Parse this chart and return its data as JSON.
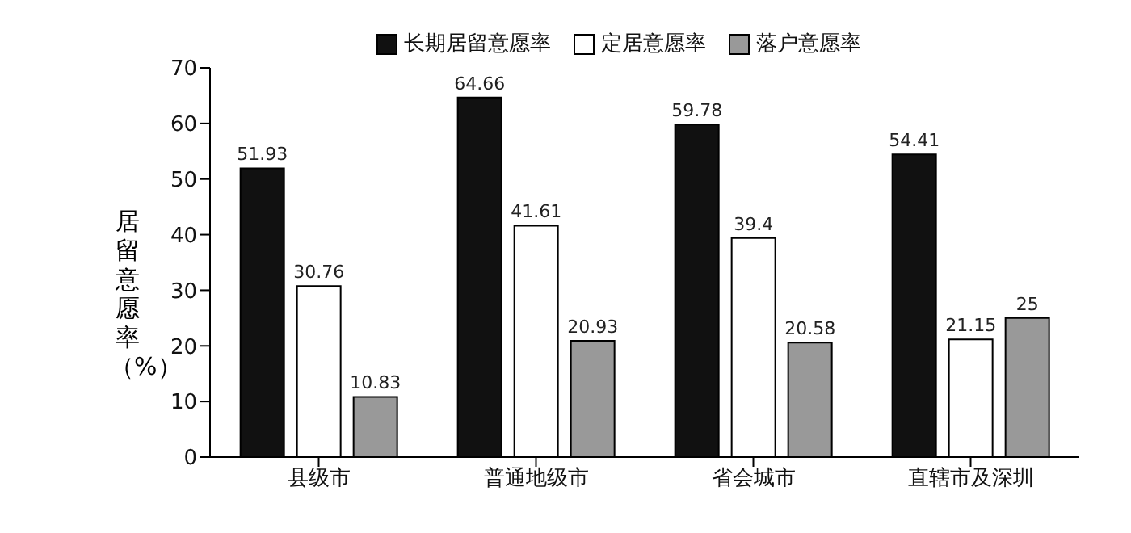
{
  "chart_data": {
    "type": "bar",
    "ylabel": "居留意愿率（%）",
    "categories": [
      "县级市",
      "普通地级市",
      "省会城市",
      "直辖市及深圳"
    ],
    "series": [
      {
        "name": "长期居留意愿率",
        "color": "#111111",
        "values": [
          51.93,
          64.66,
          59.78,
          54.41
        ],
        "value_labels": [
          "51.93",
          "64.66",
          "59.78",
          "54.41"
        ]
      },
      {
        "name": "定居意愿率",
        "color": "#ffffff",
        "values": [
          30.76,
          41.61,
          39.4,
          21.15
        ],
        "value_labels": [
          "30.76",
          "41.61",
          "39.4",
          "21.15"
        ]
      },
      {
        "name": "落户意愿率",
        "color": "#999999",
        "values": [
          10.83,
          20.93,
          20.58,
          25
        ],
        "value_labels": [
          "10.83",
          "20.93",
          "20.58",
          "25"
        ]
      }
    ],
    "ylim": [
      0,
      70
    ],
    "yticks": [
      0,
      10,
      20,
      30,
      40,
      50,
      60,
      70
    ],
    "grid": false,
    "legend": "top",
    "data_labels": true
  }
}
